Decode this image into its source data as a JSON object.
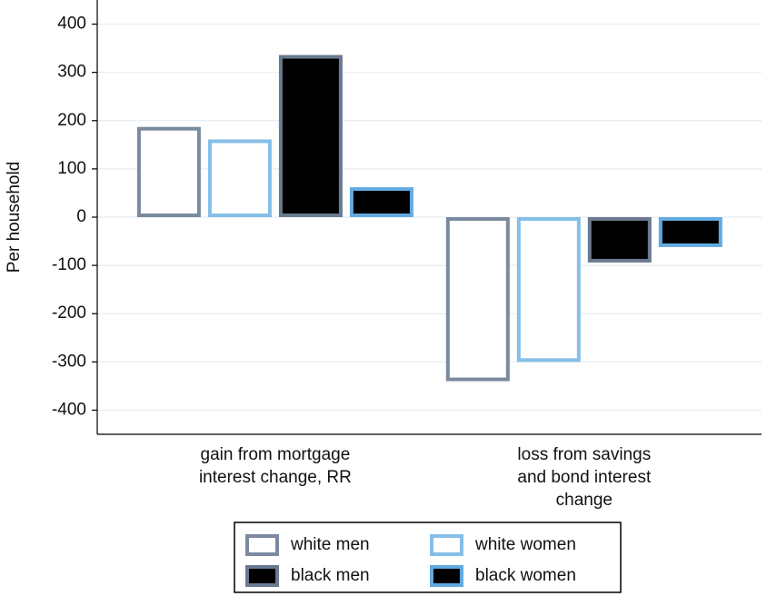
{
  "chart_data": {
    "type": "bar",
    "y_label": "Per household",
    "categories": [
      [
        "gain from mortgage",
        "interest change, RR"
      ],
      [
        "loss from savings",
        "and bond interest",
        "change"
      ]
    ],
    "series": [
      {
        "name": "white men",
        "color": "#ffffff",
        "border": "#7b8aa0",
        "values": [
          187,
          -340
        ]
      },
      {
        "name": "white women",
        "color": "#ffffff",
        "border": "#85bfe9",
        "values": [
          161,
          -300
        ]
      },
      {
        "name": "black men",
        "color": "#000000",
        "border": "#6a7a90",
        "values": [
          336,
          -94
        ]
      },
      {
        "name": "black women",
        "color": "#000000",
        "border": "#62aae2",
        "values": [
          62,
          -62
        ]
      }
    ],
    "ylim": [
      -450,
      450
    ],
    "yticks": [
      -400,
      -300,
      -200,
      -100,
      0,
      100,
      200,
      300,
      400
    ],
    "grid": true
  }
}
